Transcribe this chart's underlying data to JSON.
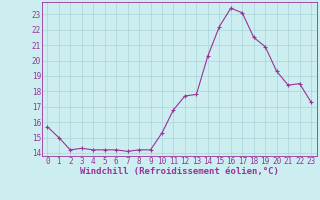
{
  "x": [
    0,
    1,
    2,
    3,
    4,
    5,
    6,
    7,
    8,
    9,
    10,
    11,
    12,
    13,
    14,
    15,
    16,
    17,
    18,
    19,
    20,
    21,
    22,
    23
  ],
  "y": [
    15.7,
    15.0,
    14.2,
    14.3,
    14.2,
    14.2,
    14.2,
    14.1,
    14.2,
    14.2,
    15.3,
    16.8,
    17.7,
    17.8,
    20.3,
    22.2,
    23.4,
    23.1,
    21.5,
    20.9,
    19.3,
    18.4,
    18.5,
    17.3
  ],
  "line_color": "#993399",
  "marker": "+",
  "marker_size": 3,
  "marker_lw": 0.8,
  "bg_color": "#cceef0",
  "grid_color": "#aad4d8",
  "xlabel": "Windchill (Refroidissement éolien,°C)",
  "ylim": [
    13.8,
    23.8
  ],
  "xlim": [
    -0.5,
    23.5
  ],
  "yticks": [
    14,
    15,
    16,
    17,
    18,
    19,
    20,
    21,
    22,
    23
  ],
  "xticks": [
    0,
    1,
    2,
    3,
    4,
    5,
    6,
    7,
    8,
    9,
    10,
    11,
    12,
    13,
    14,
    15,
    16,
    17,
    18,
    19,
    20,
    21,
    22,
    23
  ],
  "xtick_labels": [
    "0",
    "1",
    "2",
    "3",
    "4",
    "5",
    "6",
    "7",
    "8",
    "9",
    "10",
    "11",
    "12",
    "13",
    "14",
    "15",
    "16",
    "17",
    "18",
    "19",
    "20",
    "21",
    "22",
    "23"
  ],
  "ytick_labels": [
    "14",
    "15",
    "16",
    "17",
    "18",
    "19",
    "20",
    "21",
    "22",
    "23"
  ],
  "tick_fontsize": 5.5,
  "xlabel_fontsize": 6.5,
  "linewidth": 0.8
}
